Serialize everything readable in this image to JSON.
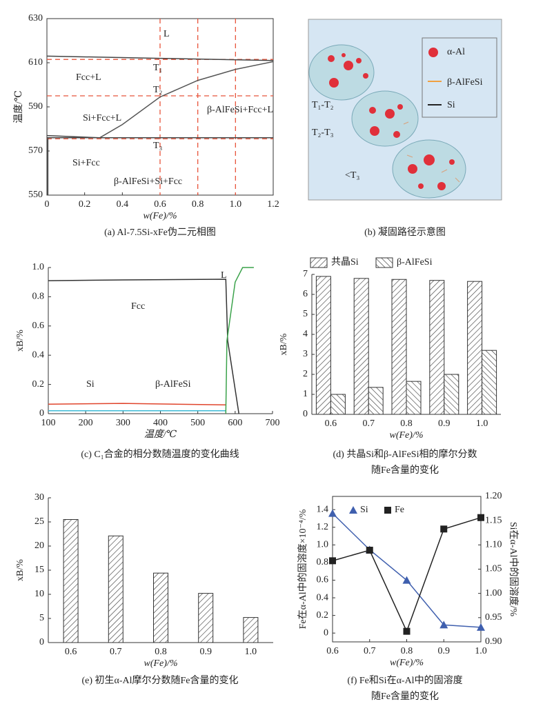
{
  "chart_data": [
    {
      "type": "line",
      "xlabel": "w(Fe)/%",
      "ylabel": "温度/℃",
      "caption": [
        "(a) Al-7.5Si-xFe伪二元相图"
      ],
      "xlim": [
        0,
        1.2
      ],
      "ylim": [
        550,
        630
      ],
      "xticks": [
        0,
        0.2,
        0.4,
        0.6,
        0.8,
        {
          "value": 1,
          "label": "1.0"
        },
        1.2
      ],
      "yticks": [
        550,
        570,
        590,
        610,
        630
      ],
      "series": [
        {
          "color": "#444444",
          "x": [
            0,
            0.6,
            1.2
          ],
          "values": [
            613,
            612,
            611
          ]
        },
        {
          "color": "#555555",
          "x": [
            0.28,
            0.4,
            0.6,
            0.8,
            1.0,
            1.2
          ],
          "values": [
            576,
            582,
            594.5,
            602,
            607,
            610.5
          ]
        },
        {
          "color": "#444444",
          "x": [
            0,
            0.28
          ],
          "values": [
            577,
            576
          ]
        },
        {
          "color": "#444444",
          "x": [
            0,
            1.2
          ],
          "values": [
            576,
            576
          ]
        },
        {
          "color": "#444444",
          "x": [
            0.005,
            0.005
          ],
          "values": [
            550,
            576
          ]
        }
      ],
      "ref_lines": {
        "color": "#e8533a",
        "y": [
          611.5,
          595,
          575.5
        ],
        "x": [
          0.6,
          0.8,
          1.0
        ]
      },
      "annotations": [
        "L",
        "T₁",
        "T₂",
        "T₃",
        "Fcc+L",
        "Si+Fcc+L",
        "β-AlFeSi+Fcc+L",
        "Si+Fcc",
        "β-AlFeSi+Si+Fcc"
      ]
    },
    {
      "type": "line",
      "xlabel": "温度/℃",
      "ylabel": "xB/%",
      "caption": [
        "(c) C₁合金的相分数随温度的变化曲线"
      ],
      "xlim": [
        100,
        700
      ],
      "ylim": [
        0,
        1
      ],
      "xticks": [
        100,
        200,
        300,
        400,
        500,
        600,
        700
      ],
      "yticks": [
        0,
        0.2,
        0.4,
        0.6,
        0.8,
        {
          "value": 1,
          "label": "1.0"
        }
      ],
      "series": [
        {
          "name": "Fcc",
          "color": "#333333",
          "x": [
            100,
            300,
            575,
            580,
            595,
            610
          ],
          "values": [
            0.91,
            0.915,
            0.92,
            0.5,
            0.25,
            0
          ]
        },
        {
          "name": "Si",
          "color": "#e0442b",
          "x": [
            100,
            300,
            575
          ],
          "values": [
            0.065,
            0.07,
            0.06
          ]
        },
        {
          "name": "β-AlFeSi",
          "color": "#3bbad6",
          "x": [
            100,
            300,
            575
          ],
          "values": [
            0.02,
            0.02,
            0.02
          ]
        },
        {
          "name": "L",
          "color": "#3aa24a",
          "x": [
            575,
            578,
            600,
            620,
            650
          ],
          "values": [
            0,
            0.5,
            0.9,
            1,
            1
          ]
        }
      ]
    },
    {
      "type": "bar",
      "xlabel": "w(Fe)/%",
      "ylabel": "xB/%",
      "caption": [
        "(d) 共晶Si和β-AlFeSi相的摩尔分数",
        "随Fe含量的变化"
      ],
      "categories": [
        "0.6",
        "0.7",
        "0.8",
        "0.9",
        "1.0"
      ],
      "ylim": [
        0,
        7
      ],
      "yticks": [
        0,
        1,
        2,
        3,
        4,
        5,
        6,
        7
      ],
      "series": [
        {
          "name": "共晶Si",
          "pattern": "forward",
          "values": [
            6.9,
            6.8,
            6.75,
            6.7,
            6.65
          ]
        },
        {
          "name": "β-AlFeSi",
          "pattern": "backward",
          "values": [
            1.0,
            1.35,
            1.65,
            2.0,
            3.2
          ]
        }
      ]
    },
    {
      "type": "bar",
      "xlabel": "w(Fe)/%",
      "ylabel": "xB/%",
      "caption": [
        "(e) 初生α-Al摩尔分数随Fe含量的变化"
      ],
      "categories": [
        "0.6",
        "0.7",
        "0.8",
        "0.9",
        "1.0"
      ],
      "ylim": [
        0,
        30
      ],
      "yticks": [
        0,
        5,
        10,
        15,
        20,
        25,
        30
      ],
      "series": [
        {
          "pattern": "forward",
          "values": [
            25.5,
            22.1,
            14.4,
            10.2,
            5.2
          ]
        }
      ]
    },
    {
      "type": "line",
      "xlabel": "w(Fe)/%",
      "ylabel": "Fe在α-Al中的固溶度×10⁻⁴/%",
      "y2label": "Si在α-Al中的固溶度/%",
      "caption": [
        "(f) Fe和Si在α-Al中的固溶度",
        "随Fe含量的变化"
      ],
      "x": [
        0.6,
        0.7,
        0.8,
        0.9,
        1.0
      ],
      "xlim": [
        0.6,
        1.0
      ],
      "xticks": [
        0.6,
        0.7,
        0.8,
        0.9,
        {
          "value": 1,
          "label": "1.0"
        }
      ],
      "ylim": [
        -0.1,
        1.55
      ],
      "yticks": [
        0,
        0.2,
        0.4,
        0.6,
        0.8,
        {
          "value": 1,
          "label": "1.0"
        },
        1.2,
        1.4
      ],
      "y2lim": [
        0.9,
        1.2
      ],
      "y2ticks": [
        {
          "value": 0.9,
          "label": "0.90"
        },
        0.95,
        {
          "value": 1,
          "label": "1.00"
        },
        1.05,
        {
          "value": 1.1,
          "label": "1.10"
        },
        1.15,
        {
          "value": 1.2,
          "label": "1.20"
        }
      ],
      "series": [
        {
          "name": "Si",
          "color": "#3f5fae",
          "marker": "triangle",
          "axis": "y2",
          "values": [
            1.165,
            1.09,
            1.027,
            0.935,
            0.93
          ]
        },
        {
          "name": "Fe",
          "color": "#222222",
          "marker": "square",
          "values": [
            0.82,
            0.94,
            0.02,
            1.18,
            1.31
          ]
        }
      ]
    }
  ],
  "diagram": {
    "legend": [
      "α-Al",
      "β-AlFeSi",
      "Si"
    ],
    "labels": [
      "T₁-T₂",
      "T₂-T₃",
      "<T₃"
    ],
    "caption": "(b) 凝固路径示意图"
  }
}
